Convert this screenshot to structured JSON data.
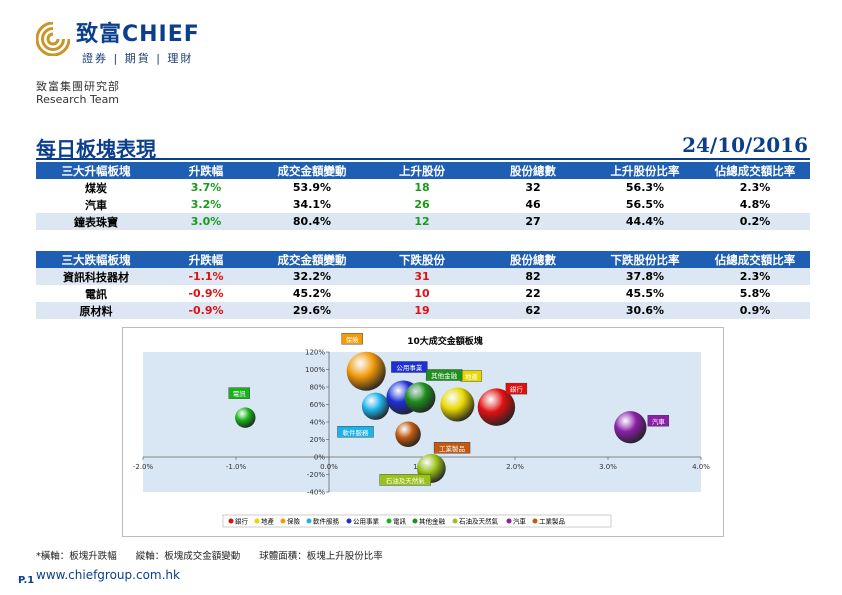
{
  "brand": {
    "name": "致富CHIEF",
    "tagline": "證券 | 期貨 | 理財",
    "dept_cn": "致富集團研究部",
    "dept_en": "Research Team"
  },
  "title": "每日板塊表現",
  "date": "24/10/2016",
  "table_up": {
    "headers": [
      "三大升幅板塊",
      "升跌幅",
      "成交金額變動",
      "上升股份",
      "股份總數",
      "上升股份比率",
      "佔總成交額比率"
    ],
    "rows": [
      [
        "煤炭",
        "3.7%",
        "53.9%",
        "18",
        "32",
        "56.3%",
        "2.3%"
      ],
      [
        "汽車",
        "3.2%",
        "34.1%",
        "26",
        "46",
        "56.5%",
        "4.8%"
      ],
      [
        "鐘表珠寶",
        "3.0%",
        "80.4%",
        "12",
        "27",
        "44.4%",
        "0.2%"
      ]
    ]
  },
  "table_down": {
    "headers": [
      "三大跌幅板塊",
      "升跌幅",
      "成交金額變動",
      "下跌股份",
      "股份總數",
      "下跌股份比率",
      "佔總成交額比率"
    ],
    "rows": [
      [
        "資訊科技器材",
        "-1.1%",
        "32.2%",
        "31",
        "82",
        "37.8%",
        "2.3%"
      ],
      [
        "電訊",
        "-0.9%",
        "45.2%",
        "10",
        "22",
        "45.5%",
        "5.8%"
      ],
      [
        "原材料",
        "-0.9%",
        "29.6%",
        "19",
        "62",
        "30.6%",
        "0.9%"
      ]
    ]
  },
  "chart_data": {
    "type": "scatter",
    "title": "10大成交金額板塊",
    "xlim": [
      -0.02,
      0.04
    ],
    "ylim": [
      -0.4,
      1.2
    ],
    "x_ticks": [
      "-2.0%",
      "-1.0%",
      "0.0%",
      "1.0%",
      "2.0%",
      "3.0%",
      "4.0%"
    ],
    "y_ticks": [
      "120%",
      "100%",
      "80%",
      "60%",
      "40%",
      "20%",
      "0%",
      "-20%",
      "-40%"
    ],
    "series": [
      {
        "name": "銀行",
        "x": 0.018,
        "y": 0.57,
        "size": 1.1,
        "color": "#e01010"
      },
      {
        "name": "地產",
        "x": 0.0138,
        "y": 0.6,
        "size": 1.0,
        "color": "#e8d800"
      },
      {
        "name": "保險",
        "x": 0.004,
        "y": 0.98,
        "size": 1.15,
        "color": "#f29a0a"
      },
      {
        "name": "軟件服務",
        "x": 0.005,
        "y": 0.58,
        "size": 0.8,
        "color": "#1eb3e8"
      },
      {
        "name": "公用事業",
        "x": 0.008,
        "y": 0.68,
        "size": 1.0,
        "color": "#1d2fd6"
      },
      {
        "name": "電訊",
        "x": -0.009,
        "y": 0.45,
        "size": 0.6,
        "color": "#18b318"
      },
      {
        "name": "其他金融",
        "x": 0.0098,
        "y": 0.68,
        "size": 0.9,
        "color": "#1f8f1f"
      },
      {
        "name": "石油及天然氣",
        "x": 0.011,
        "y": -0.13,
        "size": 0.85,
        "color": "#99c21a"
      },
      {
        "name": "汽車",
        "x": 0.0324,
        "y": 0.34,
        "size": 0.95,
        "color": "#8a1fa8"
      },
      {
        "name": "工業製品",
        "x": 0.0085,
        "y": 0.26,
        "size": 0.75,
        "color": "#c05a10"
      }
    ],
    "legend_order": [
      "銀行",
      "地產",
      "保險",
      "軟件服務",
      "公用事業",
      "電訊",
      "其他金融",
      "石油及天然氣",
      "汽車",
      "工業製品"
    ],
    "legend_position": "bottom"
  },
  "footnote": "*橫軸：板塊升跌幅　　縱軸：板塊成交金額變動　　球體面積：板塊上升股份比率",
  "page_number": "P.1",
  "url": "www.chiefgroup.com.hk"
}
